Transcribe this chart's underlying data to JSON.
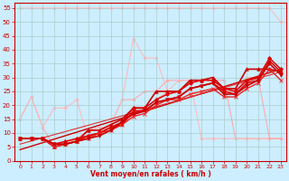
{
  "bg_color": "#cceeff",
  "grid_color": "#aacccc",
  "xlabel": "Vent moyen/en rafales ( km/h )",
  "xlim": [
    -0.5,
    23.5
  ],
  "ylim": [
    0,
    57
  ],
  "yticks": [
    0,
    5,
    10,
    15,
    20,
    25,
    30,
    35,
    40,
    45,
    50,
    55
  ],
  "xticks": [
    0,
    1,
    2,
    3,
    4,
    5,
    6,
    7,
    8,
    9,
    10,
    11,
    12,
    13,
    14,
    15,
    16,
    17,
    18,
    19,
    20,
    21,
    22,
    23
  ],
  "lines": [
    {
      "x": [
        0,
        1,
        2,
        3,
        4,
        5,
        6,
        7,
        8,
        9,
        10,
        11,
        12,
        13,
        14,
        15,
        16,
        17,
        18,
        19,
        20,
        21,
        22,
        23
      ],
      "y": [
        55,
        55,
        55,
        55,
        55,
        55,
        55,
        55,
        55,
        55,
        55,
        55,
        55,
        55,
        55,
        55,
        55,
        55,
        55,
        55,
        55,
        55,
        55,
        50
      ],
      "color": "#ffbbbb",
      "lw": 0.8,
      "marker": "o",
      "ms": 1.8,
      "zorder": 1
    },
    {
      "x": [
        0,
        1,
        2,
        3,
        4,
        5,
        6,
        7,
        8,
        9,
        10,
        11,
        12,
        13,
        14,
        15,
        16,
        17,
        18,
        19,
        20,
        21,
        22,
        23
      ],
      "y": [
        15,
        23,
        12,
        5,
        6,
        8,
        8,
        10,
        13,
        22,
        22,
        25,
        25,
        29,
        29,
        29,
        29,
        29,
        29,
        8,
        8,
        8,
        8,
        8
      ],
      "color": "#ffaaaa",
      "lw": 0.8,
      "marker": "o",
      "ms": 1.8,
      "zorder": 1
    },
    {
      "x": [
        1,
        2,
        3,
        4,
        5,
        6,
        7,
        8,
        9,
        10,
        11,
        12,
        13,
        14,
        15,
        16,
        17,
        18,
        19,
        20,
        21,
        22,
        23
      ],
      "y": [
        23,
        12,
        19,
        19,
        22,
        8,
        10,
        13,
        22,
        44,
        37,
        37,
        25,
        29,
        29,
        8,
        8,
        8,
        8,
        8,
        8,
        8,
        8
      ],
      "color": "#ffbbbb",
      "lw": 0.8,
      "marker": "o",
      "ms": 1.8,
      "zorder": 1
    },
    {
      "x": [
        0,
        1,
        2,
        3,
        4,
        5,
        6,
        7,
        8,
        9,
        10,
        11,
        12,
        13,
        14,
        15,
        16,
        17,
        18,
        19,
        20,
        21,
        22,
        23
      ],
      "y": [
        8,
        8,
        8,
        5,
        6,
        8,
        11,
        12,
        12,
        13,
        17,
        19,
        22,
        25,
        25,
        29,
        29,
        29,
        25,
        25,
        30,
        30,
        8,
        8
      ],
      "color": "#ffaaaa",
      "lw": 0.8,
      "marker": "+",
      "ms": 2.5,
      "zorder": 1
    },
    {
      "x": [
        0,
        1,
        2,
        3,
        4,
        5,
        6,
        7,
        8,
        9,
        10,
        11,
        12,
        13,
        14,
        15,
        16,
        17,
        18,
        19,
        20,
        21,
        22,
        23
      ],
      "y": [
        8,
        8,
        8,
        5,
        6,
        7,
        11,
        11,
        13,
        15,
        19,
        19,
        25,
        25,
        25,
        29,
        29,
        30,
        26,
        26,
        33,
        33,
        33,
        32
      ],
      "color": "#cc0000",
      "lw": 1.2,
      "marker": "^",
      "ms": 2.5,
      "zorder": 3
    },
    {
      "x": [
        0,
        1,
        2,
        3,
        4,
        5,
        6,
        7,
        8,
        9,
        10,
        11,
        12,
        13,
        14,
        15,
        16,
        17,
        18,
        19,
        20,
        21,
        22,
        23
      ],
      "y": [
        8,
        8,
        8,
        6,
        7,
        8,
        9,
        10,
        12,
        14,
        19,
        19,
        22,
        24,
        25,
        28,
        29,
        29,
        26,
        25,
        29,
        30,
        37,
        33
      ],
      "color": "#dd0000",
      "lw": 1.1,
      "marker": "D",
      "ms": 2.0,
      "zorder": 3
    },
    {
      "x": [
        0,
        1,
        2,
        3,
        4,
        5,
        6,
        7,
        8,
        9,
        10,
        11,
        12,
        13,
        14,
        15,
        16,
        17,
        18,
        19,
        20,
        21,
        22,
        23
      ],
      "y": [
        8,
        8,
        8,
        6,
        6,
        7,
        9,
        10,
        12,
        13,
        18,
        18,
        21,
        22,
        23,
        26,
        27,
        28,
        25,
        24,
        28,
        29,
        36,
        32
      ],
      "color": "#dd0000",
      "lw": 1.1,
      "marker": "s",
      "ms": 2.0,
      "zorder": 3
    },
    {
      "x": [
        0,
        1,
        2,
        3,
        4,
        5,
        6,
        7,
        8,
        9,
        10,
        11,
        12,
        13,
        14,
        15,
        16,
        17,
        18,
        19,
        20,
        21,
        22,
        23
      ],
      "y": [
        8,
        8,
        8,
        5,
        6,
        7,
        8,
        10,
        11,
        13,
        16,
        17,
        20,
        22,
        22,
        24,
        25,
        26,
        23,
        23,
        26,
        28,
        33,
        29
      ],
      "color": "#ee2222",
      "lw": 1.0,
      "marker": "x",
      "ms": 2.5,
      "zorder": 3
    },
    {
      "x": [
        0,
        1,
        2,
        3,
        4,
        5,
        6,
        7,
        8,
        9,
        10,
        11,
        12,
        13,
        14,
        15,
        16,
        17,
        18,
        19,
        20,
        21,
        22,
        23
      ],
      "y": [
        8,
        8,
        8,
        6,
        6,
        7,
        8,
        9,
        11,
        14,
        17,
        18,
        21,
        22,
        23,
        26,
        27,
        28,
        24,
        24,
        27,
        29,
        35,
        31
      ],
      "color": "#cc0000",
      "lw": 1.2,
      "marker": "v",
      "ms": 2.5,
      "zorder": 3
    },
    {
      "x": [
        0,
        23
      ],
      "y": [
        4,
        33
      ],
      "color": "#cc0000",
      "lw": 1.0,
      "marker": "",
      "ms": 0,
      "zorder": 2
    },
    {
      "x": [
        0,
        23
      ],
      "y": [
        6,
        32
      ],
      "color": "#dd3333",
      "lw": 0.8,
      "marker": "",
      "ms": 0,
      "zorder": 2
    }
  ]
}
